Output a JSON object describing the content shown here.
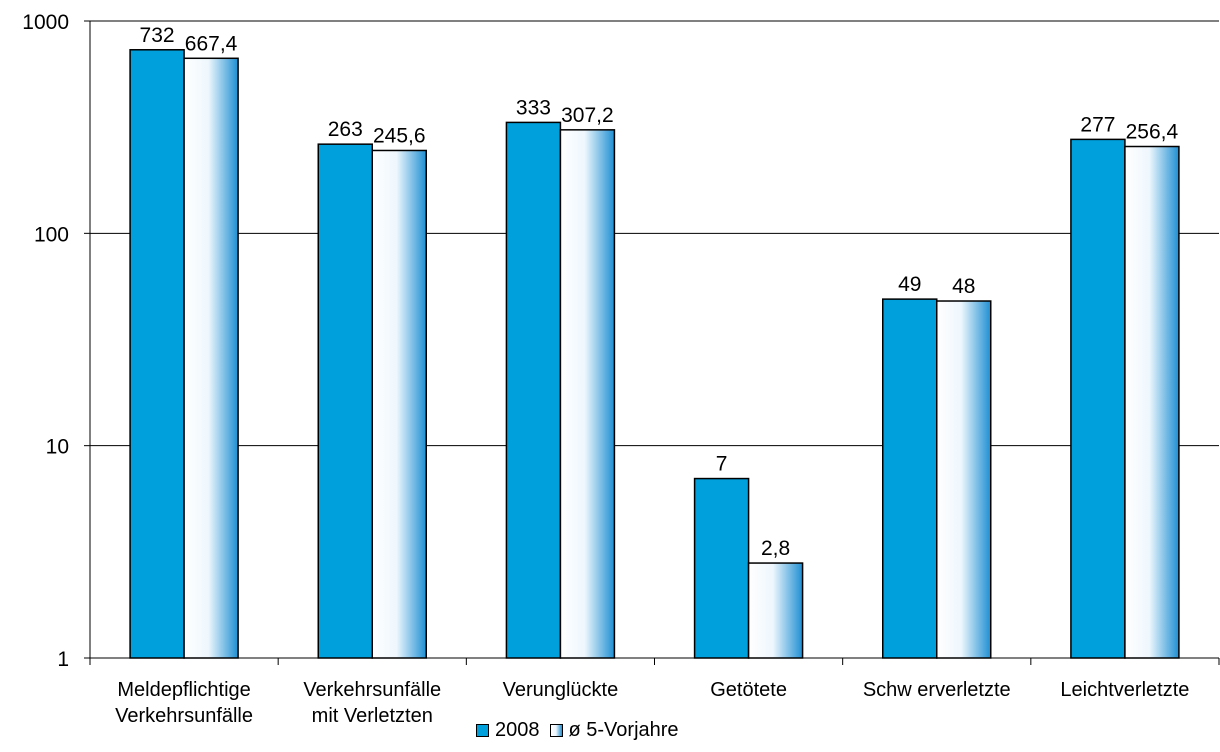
{
  "chart_data": {
    "type": "bar",
    "title": "",
    "xlabel": "",
    "ylabel": "",
    "yscale": "log",
    "ylim": [
      1,
      1000
    ],
    "yticks": [
      {
        "value": 1,
        "label": "1"
      },
      {
        "value": 10,
        "label": "10"
      },
      {
        "value": 100,
        "label": "100"
      },
      {
        "value": 1000,
        "label": "1000"
      }
    ],
    "grid": true,
    "legend_position": "bottom",
    "categories": [
      [
        "Meldepflichtige",
        "Verkehrsunfälle"
      ],
      [
        "Verkehrsunfälle",
        "mit Verletzten"
      ],
      [
        "Verunglückte"
      ],
      [
        "Getötete"
      ],
      [
        "Schw erverletzte"
      ],
      [
        "Leichtverletzte"
      ]
    ],
    "series": [
      {
        "name": "2008",
        "color": "#00a0dc",
        "values": [
          732,
          263,
          333,
          7,
          49,
          277
        ],
        "labels": [
          "732",
          "263",
          "333",
          "7",
          "49",
          "277"
        ]
      },
      {
        "name": "ø 5-Vorjahre",
        "color": "#dbeefa",
        "values": [
          667.4,
          245.6,
          307.2,
          2.8,
          48,
          256.4
        ],
        "labels": [
          "667,4",
          "245,6",
          "307,2",
          "2,8",
          "48",
          "256,4"
        ]
      }
    ]
  }
}
